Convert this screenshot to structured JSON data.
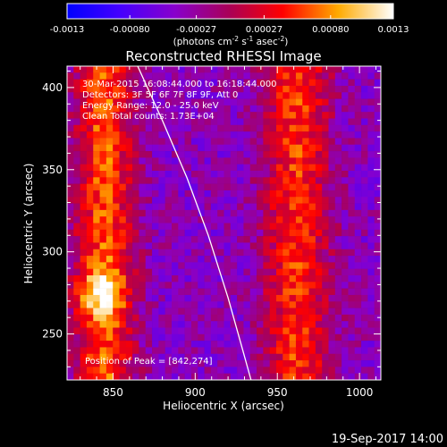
{
  "chart_data": {
    "type": "heatmap",
    "title": "Reconstructed RHESSI Image",
    "xlabel": "Heliocentric X (arcsec)",
    "ylabel": "Heliocentric Y (arcsec)",
    "xlim": [
      822,
      1013
    ],
    "ylim": [
      222,
      413
    ],
    "x_ticks": [
      850,
      900,
      950,
      1000
    ],
    "y_ticks": [
      250,
      300,
      350,
      400
    ],
    "annotations": [
      "30-Mar-2015 16:08:44.000 to 16:18:44.000",
      "Detectors: 3F 5F 6F 7F 8F 9F, Att 0",
      "Energy Range: 12.0 - 25.0 keV",
      "Clean     Total counts: 1.73E+04"
    ],
    "peak_label": "Position of Peak = [842,274]",
    "peak": [
      842,
      274
    ],
    "colorbar": {
      "min": -0.0013,
      "max": 0.0013,
      "ticks": [
        -0.0013,
        -0.0008,
        -0.00027,
        0.00027,
        0.0008,
        0.0013
      ],
      "tick_labels": [
        "-0.0013",
        "-0.00080",
        "-0.00027",
        "0.00027",
        "0.00080",
        "0.0013"
      ],
      "label_main": "(photons cm",
      "label_exp1": "-2",
      "label_mid": " s",
      "label_exp2": "-1",
      "label_tail": " asec",
      "label_exp3": "-2",
      "label_end": ")"
    },
    "limb_curve": [
      {
        "x": 865,
        "y": 413
      },
      {
        "x": 880,
        "y": 380
      },
      {
        "x": 895,
        "y": 345
      },
      {
        "x": 908,
        "y": 310
      },
      {
        "x": 920,
        "y": 272
      },
      {
        "x": 929,
        "y": 240
      },
      {
        "x": 934,
        "y": 222
      }
    ],
    "emission_bands": [
      {
        "x_center": 845,
        "width": 18,
        "amplitude": 0.001
      },
      {
        "x_center": 962,
        "width": 20,
        "amplitude": 0.0009
      }
    ],
    "background_level": -0.0004
  },
  "footer": {
    "date": "19-Sep-2017 14:00"
  },
  "colors": {
    "background": "#000000",
    "limb": "#ffffff"
  }
}
